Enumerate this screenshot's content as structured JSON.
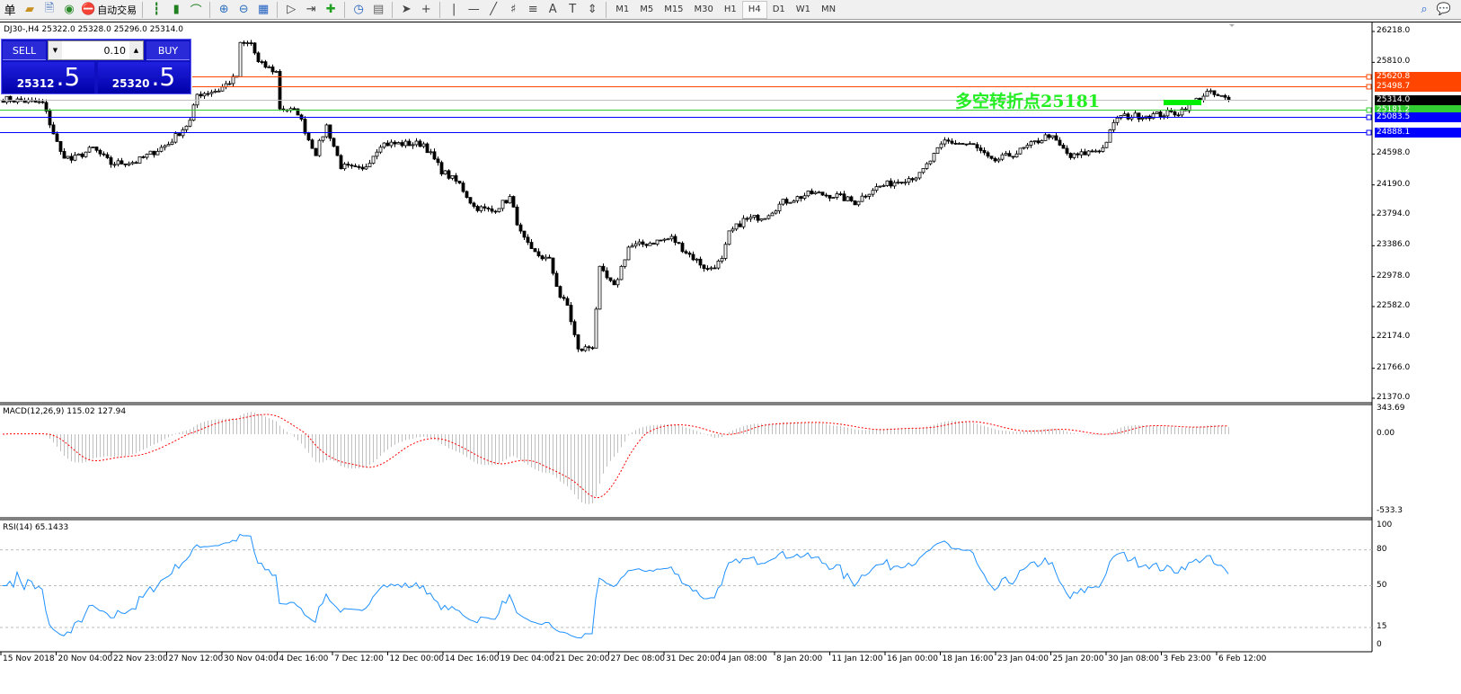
{
  "toolbar": {
    "menu_stub": "单",
    "auto_trade": "自动交易",
    "icons": [
      "orders-icon",
      "history-icon",
      "signal-icon",
      "autotrade-icon",
      "bar-chart-icon",
      "candle-chart-icon",
      "line-chart-icon",
      "zoom-in-icon",
      "zoom-out-icon",
      "tile-windows-icon",
      "autoscroll-icon",
      "chart-shift-icon",
      "add-indicator-icon",
      "periods-icon",
      "templates-icon",
      "cursor-icon",
      "crosshair-icon",
      "vertical-line-icon",
      "horizontal-line-icon",
      "trendline-icon",
      "fibonacci-icon",
      "fibo-levels-icon",
      "text-icon",
      "text-label-icon",
      "arrows-icon"
    ],
    "timeframes": [
      "M1",
      "M5",
      "M15",
      "M30",
      "H1",
      "H4",
      "D1",
      "W1",
      "MN"
    ],
    "active_timeframe": "H4"
  },
  "symbol_info": "DJ30-,H4  25322.0 25328.0 25296.0 25314.0",
  "trade_panel": {
    "sell_label": "SELL",
    "buy_label": "BUY",
    "lot": "0.10",
    "sell_main": "25312",
    "sell_pip": ".5",
    "buy_main": "25320",
    "buy_pip": ".5"
  },
  "price_axis": [
    "26218.0",
    "25810.0",
    "24598.0",
    "24190.0",
    "23794.0",
    "23386.0",
    "22978.0",
    "22582.0",
    "22174.0",
    "21766.0",
    "21370.0"
  ],
  "price_lines": [
    {
      "value": 25620.8,
      "label": "25620.8",
      "color": "#ff4500"
    },
    {
      "value": 25498.7,
      "label": "25498.7",
      "color": "#ff4500"
    },
    {
      "value": 25314.0,
      "label": "25314.0",
      "color": "#c0c0c0",
      "tag_color": "#000000"
    },
    {
      "value": 25181.2,
      "label": "25181.2",
      "color": "#32cd32"
    },
    {
      "value": 25083.5,
      "label": "25083.5",
      "color": "#0000ff"
    },
    {
      "value": 24888.1,
      "label": "24888.1",
      "color": "#0000ff"
    }
  ],
  "annotation": "多空转折点25181",
  "macd": {
    "label": "MACD(12,26,9) 115.02 127.94",
    "axis": [
      "343.69",
      "0.00",
      "-533.3"
    ],
    "signal_color": "#ff0000",
    "hist_color": "#c0c0c0"
  },
  "rsi": {
    "label": "RSI(14) 65.1433",
    "axis": [
      "100",
      "80",
      "50",
      "15",
      "0"
    ],
    "levels": [
      80,
      50,
      15
    ],
    "color": "#1e90ff"
  },
  "time_axis": [
    "15 Nov 2018",
    "20 Nov 04:00",
    "22 Nov 23:00",
    "27 Nov 12:00",
    "30 Nov 04:00",
    "4 Dec 16:00",
    "7 Dec 12:00",
    "12 Dec 00:00",
    "14 Dec 16:00",
    "19 Dec 04:00",
    "21 Dec 20:00",
    "27 Dec 08:00",
    "31 Dec 20:00",
    "4 Jan 08:00",
    "8 Jan 20:00",
    "11 Jan 12:00",
    "16 Jan 00:00",
    "18 Jan 16:00",
    "23 Jan 04:00",
    "25 Jan 20:00",
    "30 Jan 08:00",
    "3 Feb 23:00",
    "6 Feb 12:00"
  ],
  "chart_data": {
    "type": "candlestick",
    "symbol": "DJ30-",
    "timeframe": "H4",
    "ylim": [
      21370,
      26218
    ],
    "approx_close_path": [
      [
        0,
        25327
      ],
      [
        11,
        25268
      ],
      [
        16,
        24614
      ],
      [
        19,
        24519
      ],
      [
        25,
        24674
      ],
      [
        30,
        24472
      ],
      [
        37,
        24496
      ],
      [
        46,
        24733
      ],
      [
        52,
        25030
      ],
      [
        54,
        25386
      ],
      [
        60,
        25446
      ],
      [
        65,
        25624
      ],
      [
        66,
        26040
      ],
      [
        69,
        26064
      ],
      [
        71,
        25802
      ],
      [
        76,
        25683
      ],
      [
        77,
        25208
      ],
      [
        82,
        25149
      ],
      [
        85,
        24792
      ],
      [
        87,
        24614
      ],
      [
        90,
        24971
      ],
      [
        94,
        24436
      ],
      [
        100,
        24377
      ],
      [
        105,
        24733
      ],
      [
        110,
        24733
      ],
      [
        117,
        24733
      ],
      [
        122,
        24377
      ],
      [
        127,
        24198
      ],
      [
        131,
        23901
      ],
      [
        136,
        23842
      ],
      [
        141,
        24020
      ],
      [
        144,
        23545
      ],
      [
        147,
        23307
      ],
      [
        152,
        23189
      ],
      [
        155,
        22713
      ],
      [
        157,
        22594
      ],
      [
        160,
        22000
      ],
      [
        164,
        22060
      ],
      [
        166,
        23070
      ],
      [
        170,
        22832
      ],
      [
        174,
        23367
      ],
      [
        180,
        23426
      ],
      [
        186,
        23486
      ],
      [
        190,
        23307
      ],
      [
        196,
        23070
      ],
      [
        200,
        23189
      ],
      [
        202,
        23545
      ],
      [
        206,
        23723
      ],
      [
        212,
        23783
      ],
      [
        217,
        23961
      ],
      [
        225,
        24080
      ],
      [
        232,
        24044
      ],
      [
        237,
        23961
      ],
      [
        242,
        24139
      ],
      [
        250,
        24258
      ],
      [
        255,
        24317
      ],
      [
        262,
        24769
      ],
      [
        270,
        24709
      ],
      [
        275,
        24496
      ],
      [
        282,
        24614
      ],
      [
        291,
        24852
      ],
      [
        297,
        24555
      ],
      [
        306,
        24674
      ],
      [
        310,
        25089
      ],
      [
        320,
        25113
      ],
      [
        327,
        25149
      ],
      [
        335,
        25410
      ],
      [
        341,
        25314
      ]
    ]
  }
}
